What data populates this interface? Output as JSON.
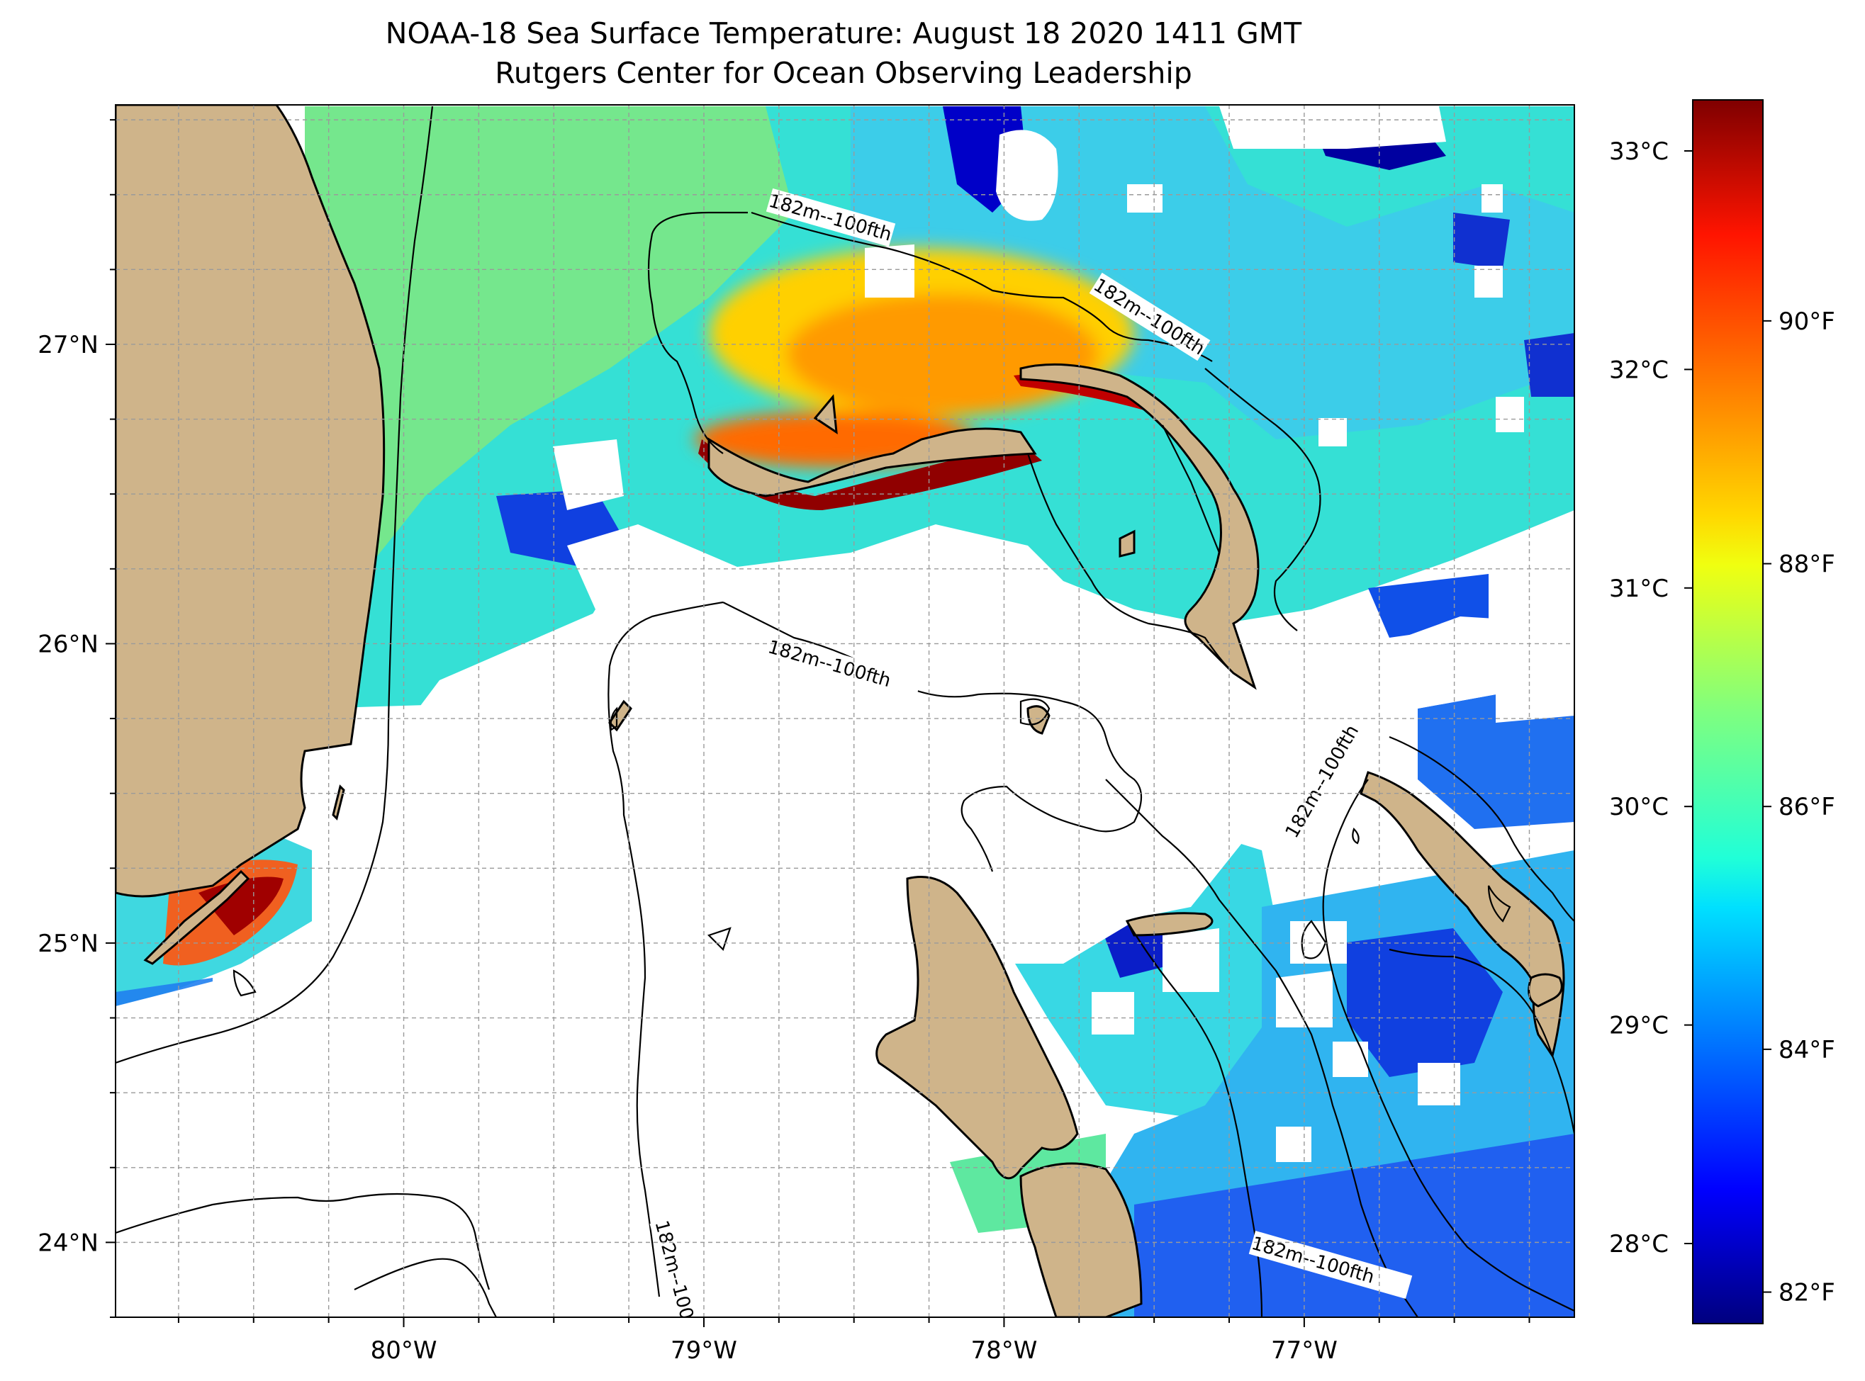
{
  "title": "NOAA-18 Sea Surface Temperature: August 18 2020 1411 GMT",
  "subtitle": "Rutgers Center for Ocean Observing Leadership",
  "map": {
    "lon_range": [
      -80.96,
      -76.1
    ],
    "lat_range": [
      23.75,
      27.8
    ],
    "lon_ticks": [
      {
        "value": -80,
        "label": "80°W"
      },
      {
        "value": -79,
        "label": "79°W"
      },
      {
        "value": -78,
        "label": "78°W"
      },
      {
        "value": -77,
        "label": "77°W"
      }
    ],
    "lat_ticks": [
      {
        "value": 24,
        "label": "24°N"
      },
      {
        "value": 25,
        "label": "25°N"
      },
      {
        "value": 26,
        "label": "26°N"
      },
      {
        "value": 27,
        "label": "27°N"
      }
    ],
    "grid": "dashed",
    "contour_label": "182m--100fth",
    "colors": {
      "land": "#cfb48a",
      "cloud": "#ffffff",
      "contour": "#000000"
    }
  },
  "colorbar": {
    "celsius_labels": [
      "33°C",
      "32°C",
      "31°C",
      "30°C",
      "29°C",
      "28°C"
    ],
    "fahrenheit_labels": [
      "90°F",
      "88°F",
      "86°F",
      "84°F",
      "82°F"
    ],
    "colormap": "jet"
  }
}
